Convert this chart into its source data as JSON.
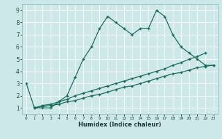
{
  "xlabel": "Humidex (Indice chaleur)",
  "bg_color": "#cce8e8",
  "grid_color": "#b0d8d8",
  "line_color": "#1a6b5e",
  "xlim": [
    -0.5,
    23.5
  ],
  "ylim": [
    0.5,
    9.5
  ],
  "xticks": [
    0,
    1,
    2,
    3,
    4,
    5,
    6,
    7,
    8,
    9,
    10,
    11,
    12,
    13,
    14,
    15,
    16,
    17,
    18,
    19,
    20,
    21,
    22,
    23
  ],
  "yticks": [
    1,
    2,
    3,
    4,
    5,
    6,
    7,
    8,
    9
  ],
  "line1_x": [
    0,
    1,
    2,
    3,
    4,
    5,
    6,
    7,
    8,
    9,
    10,
    11,
    12,
    13,
    14,
    15,
    16,
    17,
    18,
    19,
    20,
    21,
    22,
    23
  ],
  "line1_y": [
    3.0,
    1.0,
    1.0,
    1.0,
    1.5,
    2.0,
    3.5,
    5.0,
    6.0,
    7.5,
    8.5,
    8.0,
    7.5,
    7.0,
    7.5,
    7.5,
    9.0,
    8.5,
    7.0,
    6.0,
    5.5,
    5.0,
    4.5,
    4.5
  ],
  "line2_x": [
    1,
    2,
    3,
    4,
    5,
    6,
    7,
    8,
    9,
    10,
    11,
    12,
    13,
    14,
    15,
    16,
    17,
    18,
    19,
    20,
    21,
    22,
    23
  ],
  "line2_y": [
    1.0,
    1.1,
    1.2,
    1.3,
    1.5,
    1.6,
    1.8,
    2.0,
    2.1,
    2.3,
    2.5,
    2.7,
    2.8,
    3.0,
    3.2,
    3.4,
    3.6,
    3.8,
    3.9,
    4.1,
    4.3,
    4.4,
    4.5
  ],
  "line3_x": [
    1,
    2,
    3,
    4,
    5,
    6,
    7,
    8,
    9,
    10,
    11,
    12,
    13,
    14,
    15,
    16,
    17,
    18,
    19,
    20,
    21,
    22
  ],
  "line3_y": [
    1.0,
    1.2,
    1.3,
    1.5,
    1.7,
    2.0,
    2.2,
    2.4,
    2.6,
    2.8,
    3.0,
    3.2,
    3.4,
    3.6,
    3.8,
    4.0,
    4.2,
    4.5,
    4.7,
    5.0,
    5.2,
    5.5
  ]
}
